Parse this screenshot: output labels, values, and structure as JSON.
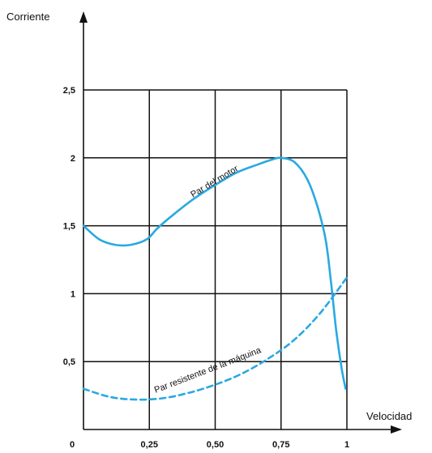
{
  "chart_data": {
    "type": "line",
    "ylabel": "Corriente",
    "xlabel": "Velocidad",
    "x_ticks": [
      {
        "value": 0,
        "label": "0"
      },
      {
        "value": 0.25,
        "label": "0,25"
      },
      {
        "value": 0.5,
        "label": "0,50"
      },
      {
        "value": 0.75,
        "label": "0,75"
      },
      {
        "value": 1,
        "label": "1"
      }
    ],
    "y_ticks": [
      {
        "value": 0.5,
        "label": "0,5"
      },
      {
        "value": 1,
        "label": "1"
      },
      {
        "value": 1.5,
        "label": "1,5"
      },
      {
        "value": 2,
        "label": "2"
      },
      {
        "value": 2.5,
        "label": "2,5"
      }
    ],
    "xlim": [
      0,
      1
    ],
    "ylim": [
      0,
      2.5
    ],
    "grid": true,
    "series": [
      {
        "name": "Par del motor",
        "color": "#29a9e1",
        "style": "solid",
        "x": [
          0,
          0.06,
          0.12,
          0.18,
          0.24,
          0.28,
          0.34,
          0.42,
          0.5,
          0.58,
          0.66,
          0.72,
          0.75,
          0.8,
          0.85,
          0.89,
          0.92,
          0.94,
          0.96,
          0.98,
          0.995
        ],
        "y": [
          1.5,
          1.4,
          1.36,
          1.36,
          1.4,
          1.48,
          1.58,
          1.7,
          1.8,
          1.89,
          1.95,
          1.99,
          2.0,
          1.97,
          1.84,
          1.63,
          1.39,
          1.08,
          0.72,
          0.45,
          0.3
        ]
      },
      {
        "name": "Par resistente de la máquina",
        "color": "#29a9e1",
        "style": "dashed",
        "x": [
          0,
          0.1,
          0.2,
          0.3,
          0.4,
          0.5,
          0.6,
          0.7,
          0.8,
          0.9,
          1.0
        ],
        "y": [
          0.3,
          0.24,
          0.22,
          0.23,
          0.27,
          0.33,
          0.41,
          0.52,
          0.66,
          0.86,
          1.12
        ]
      }
    ]
  }
}
